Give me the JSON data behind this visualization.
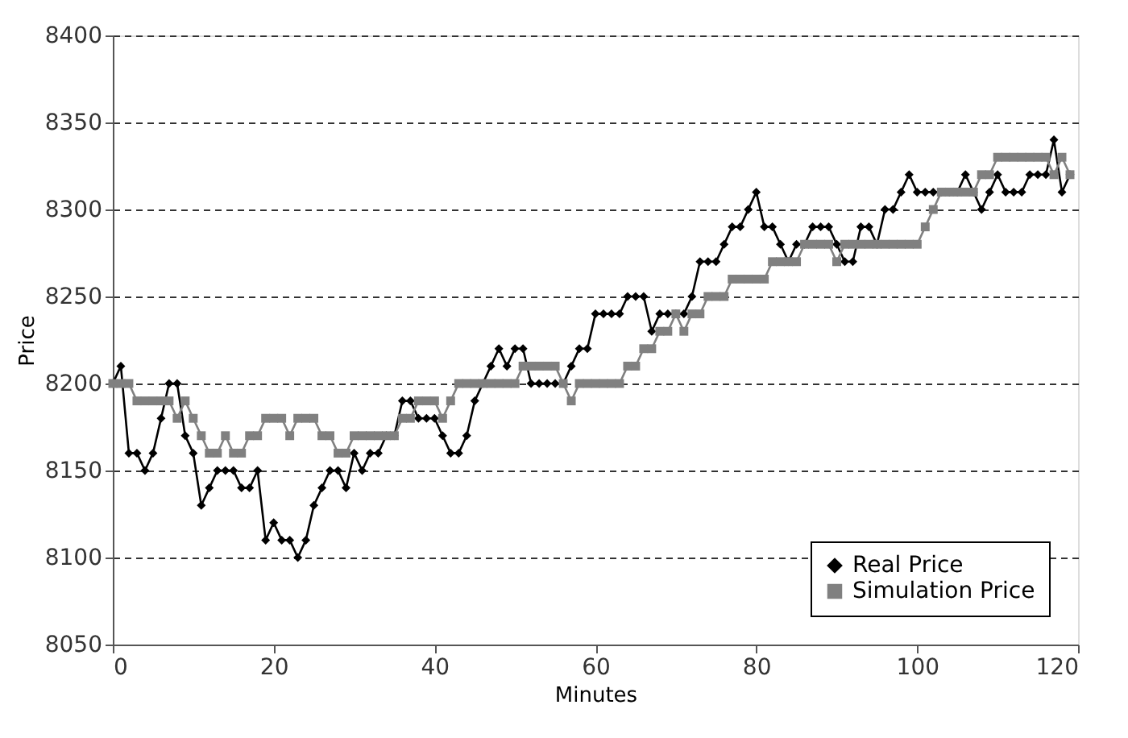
{
  "chart_data": {
    "type": "line",
    "xlabel": "Minutes",
    "ylabel": "Price",
    "x": [
      0,
      1,
      2,
      3,
      4,
      5,
      6,
      7,
      8,
      9,
      10,
      11,
      12,
      13,
      14,
      15,
      16,
      17,
      18,
      19,
      20,
      21,
      22,
      23,
      24,
      25,
      26,
      27,
      28,
      29,
      30,
      31,
      32,
      33,
      34,
      35,
      36,
      37,
      38,
      39,
      40,
      41,
      42,
      43,
      44,
      45,
      46,
      47,
      48,
      49,
      50,
      51,
      52,
      53,
      54,
      55,
      56,
      57,
      58,
      59,
      60,
      61,
      62,
      63,
      64,
      65,
      66,
      67,
      68,
      69,
      70,
      71,
      72,
      73,
      74,
      75,
      76,
      77,
      78,
      79,
      80,
      81,
      82,
      83,
      84,
      85,
      86,
      87,
      88,
      89,
      90,
      91,
      92,
      93,
      94,
      95,
      96,
      97,
      98,
      99,
      100,
      101,
      102,
      103,
      104,
      105,
      106,
      107,
      108,
      109,
      110,
      111,
      112,
      113,
      114,
      115,
      116,
      117,
      118,
      119
    ],
    "series": [
      {
        "name": "Real Price",
        "color": "#000000",
        "marker": "diamond",
        "values": [
          8200,
          8210,
          8160,
          8160,
          8150,
          8160,
          8180,
          8200,
          8200,
          8170,
          8160,
          8130,
          8140,
          8150,
          8150,
          8150,
          8140,
          8140,
          8150,
          8110,
          8120,
          8110,
          8110,
          8100,
          8110,
          8130,
          8140,
          8150,
          8150,
          8140,
          8160,
          8150,
          8160,
          8160,
          8170,
          8170,
          8190,
          8190,
          8180,
          8180,
          8180,
          8170,
          8160,
          8160,
          8170,
          8190,
          8200,
          8210,
          8220,
          8210,
          8220,
          8220,
          8200,
          8200,
          8200,
          8200,
          8200,
          8210,
          8220,
          8220,
          8240,
          8240,
          8240,
          8240,
          8250,
          8250,
          8250,
          8230,
          8240,
          8240,
          8240,
          8240,
          8250,
          8270,
          8270,
          8270,
          8280,
          8290,
          8290,
          8300,
          8310,
          8290,
          8290,
          8280,
          8270,
          8280,
          8280,
          8290,
          8290,
          8290,
          8280,
          8270,
          8270,
          8290,
          8290,
          8280,
          8300,
          8300,
          8310,
          8320,
          8310,
          8310,
          8310,
          8310,
          8310,
          8310,
          8320,
          8310,
          8300,
          8310,
          8320,
          8310,
          8310,
          8310,
          8320,
          8320,
          8320,
          8340,
          8310,
          8320
        ]
      },
      {
        "name": "Simulation Price",
        "color": "#808080",
        "marker": "square",
        "values": [
          8200,
          8200,
          8200,
          8190,
          8190,
          8190,
          8190,
          8190,
          8180,
          8190,
          8180,
          8170,
          8160,
          8160,
          8170,
          8160,
          8160,
          8170,
          8170,
          8180,
          8180,
          8180,
          8170,
          8180,
          8180,
          8180,
          8170,
          8170,
          8160,
          8160,
          8170,
          8170,
          8170,
          8170,
          8170,
          8170,
          8180,
          8180,
          8190,
          8190,
          8190,
          8180,
          8190,
          8200,
          8200,
          8200,
          8200,
          8200,
          8200,
          8200,
          8200,
          8210,
          8210,
          8210,
          8210,
          8210,
          8200,
          8190,
          8200,
          8200,
          8200,
          8200,
          8200,
          8200,
          8210,
          8210,
          8220,
          8220,
          8230,
          8230,
          8240,
          8230,
          8240,
          8240,
          8250,
          8250,
          8250,
          8260,
          8260,
          8260,
          8260,
          8260,
          8270,
          8270,
          8270,
          8270,
          8280,
          8280,
          8280,
          8280,
          8270,
          8280,
          8280,
          8280,
          8280,
          8280,
          8280,
          8280,
          8280,
          8280,
          8280,
          8290,
          8300,
          8310,
          8310,
          8310,
          8310,
          8310,
          8320,
          8320,
          8330,
          8330,
          8330,
          8330,
          8330,
          8330,
          8330,
          8320,
          8330,
          8320
        ]
      }
    ],
    "xlim": [
      0,
      120
    ],
    "xticks": [
      0,
      20,
      40,
      60,
      80,
      100,
      120
    ],
    "ylim": [
      8050,
      8400
    ],
    "yticks": [
      8050,
      8100,
      8150,
      8200,
      8250,
      8300,
      8350,
      8400
    ],
    "grid": "y",
    "line_style": "solid",
    "legend": "bottom right"
  }
}
